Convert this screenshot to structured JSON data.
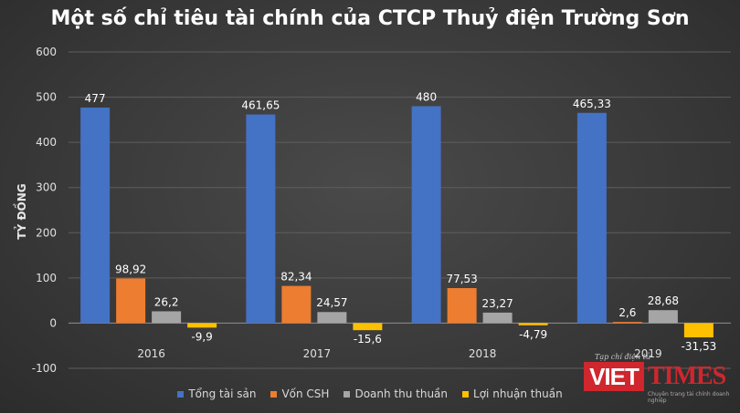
{
  "title": "Một số chỉ tiêu tài chính của CTCP Thuỷ điện Trường Sơn",
  "watermark": {
    "top_text": "Tạp chí điện tử",
    "viet": "VIET",
    "times": "TIMES",
    "sub_text": "Chuyên trang tài chính doanh nghiệp"
  },
  "chart_data": {
    "type": "bar",
    "title": "Một số chỉ tiêu tài chính của CTCP Thuỷ điện Trường Sơn",
    "xlabel": "",
    "ylabel": "TỶ ĐỒNG",
    "ylim": [
      -100,
      600
    ],
    "yticks": [
      600,
      500,
      400,
      300,
      200,
      100,
      0,
      -100
    ],
    "grid": true,
    "legend_position": "bottom",
    "categories": [
      "2016",
      "2017",
      "2018",
      "2019"
    ],
    "series": [
      {
        "name": "Tổng tài sản",
        "color": "#4472c4",
        "values": [
          477,
          461.65,
          480,
          465.33
        ],
        "labels": [
          "477",
          "461,65",
          "480",
          "465,33"
        ]
      },
      {
        "name": "Vốn CSH",
        "color": "#ed7d31",
        "values": [
          98.92,
          82.34,
          77.53,
          2.6
        ],
        "labels": [
          "98,92",
          "82,34",
          "77,53",
          "2,6"
        ]
      },
      {
        "name": "Doanh thu thuần",
        "color": "#a5a5a5",
        "values": [
          26.2,
          24.57,
          23.27,
          28.68
        ],
        "labels": [
          "26,2",
          "24,57",
          "23,27",
          "28,68"
        ]
      },
      {
        "name": "Lợi nhuận thuần",
        "color": "#ffc000",
        "values": [
          -9.9,
          -15.6,
          -4.79,
          -31.53
        ],
        "labels": [
          "-9,9",
          "-15,6",
          "-4,79",
          "-31,53"
        ]
      }
    ]
  }
}
